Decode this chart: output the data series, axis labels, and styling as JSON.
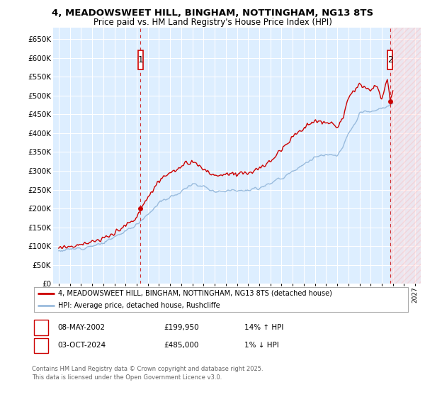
{
  "title": "4, MEADOWSWEET HILL, BINGHAM, NOTTINGHAM, NG13 8TS",
  "subtitle": "Price paid vs. HM Land Registry's House Price Index (HPI)",
  "ylim": [
    0,
    680000
  ],
  "yticks": [
    0,
    50000,
    100000,
    150000,
    200000,
    250000,
    300000,
    350000,
    400000,
    450000,
    500000,
    550000,
    600000,
    650000
  ],
  "ytick_labels": [
    "£0",
    "£50K",
    "£100K",
    "£150K",
    "£200K",
    "£250K",
    "£300K",
    "£350K",
    "£400K",
    "£450K",
    "£500K",
    "£550K",
    "£600K",
    "£650K"
  ],
  "xlim_start": 1994.5,
  "xlim_end": 2027.5,
  "xtick_years": [
    1995,
    1996,
    1997,
    1998,
    1999,
    2000,
    2001,
    2002,
    2003,
    2004,
    2005,
    2006,
    2007,
    2008,
    2009,
    2010,
    2011,
    2012,
    2013,
    2014,
    2015,
    2016,
    2017,
    2018,
    2019,
    2020,
    2021,
    2022,
    2023,
    2024,
    2025,
    2026,
    2027
  ],
  "transaction1_x": 2002.35,
  "transaction1_y": 199950,
  "transaction2_x": 2024.75,
  "transaction2_y": 485000,
  "legend_line1": "4, MEADOWSWEET HILL, BINGHAM, NOTTINGHAM, NG13 8TS (detached house)",
  "legend_line2": "HPI: Average price, detached house, Rushcliffe",
  "annotation1_date": "08-MAY-2002",
  "annotation1_price": "£199,950",
  "annotation1_hpi": "14% ↑ HPI",
  "annotation2_date": "03-OCT-2024",
  "annotation2_price": "£485,000",
  "annotation2_hpi": "1% ↓ HPI",
  "footnote": "Contains HM Land Registry data © Crown copyright and database right 2025.\nThis data is licensed under the Open Government Licence v3.0.",
  "line_color_red": "#cc0000",
  "line_color_blue": "#99bbdd",
  "background_color": "#ddeeff",
  "grid_color": "#ffffff",
  "future_start": 2024.75
}
